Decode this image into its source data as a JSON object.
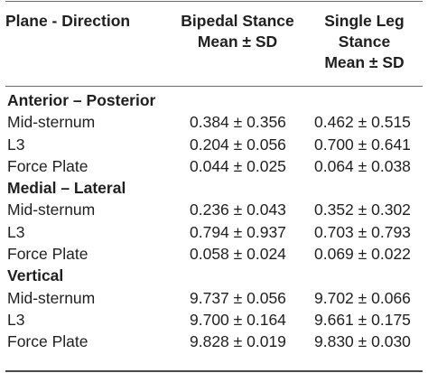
{
  "header": {
    "col1": "Plane - Direction",
    "col2_line1": "Bipedal Stance",
    "col2_line2": "Mean ± SD",
    "col3_line1": "Single Leg",
    "col3_line2": "Stance",
    "col3_line3": "Mean ± SD"
  },
  "sections": [
    {
      "title": "Anterior – Posterior",
      "rows": [
        {
          "label": "Mid-sternum",
          "bipedal": "0.384 ± 0.356",
          "single": "0.462 ± 0.515"
        },
        {
          "label": "L3",
          "bipedal": "0.204 ± 0.056",
          "single": "0.700 ± 0.641"
        },
        {
          "label": "Force Plate",
          "bipedal": "0.044 ± 0.025",
          "single": "0.064 ± 0.038"
        }
      ]
    },
    {
      "title": "Medial – Lateral",
      "rows": [
        {
          "label": "Mid-sternum",
          "bipedal": "0.236 ± 0.043",
          "single": "0.352 ± 0.302"
        },
        {
          "label": "L3",
          "bipedal": "0.794 ± 0.937",
          "single": "0.703 ± 0.793"
        },
        {
          "label": "Force Plate",
          "bipedal": "0.058 ± 0.024",
          "single": "0.069 ± 0.022"
        }
      ]
    },
    {
      "title": "Vertical",
      "rows": [
        {
          "label": "Mid-sternum",
          "bipedal": "9.737 ± 0.056",
          "single": "9.702 ± 0.066"
        },
        {
          "label": "L3",
          "bipedal": "9.700 ± 0.164",
          "single": "9.661 ± 0.175"
        },
        {
          "label": "Force Plate",
          "bipedal": "9.828 ± 0.019",
          "single": "9.830 ± 0.030"
        }
      ]
    }
  ]
}
